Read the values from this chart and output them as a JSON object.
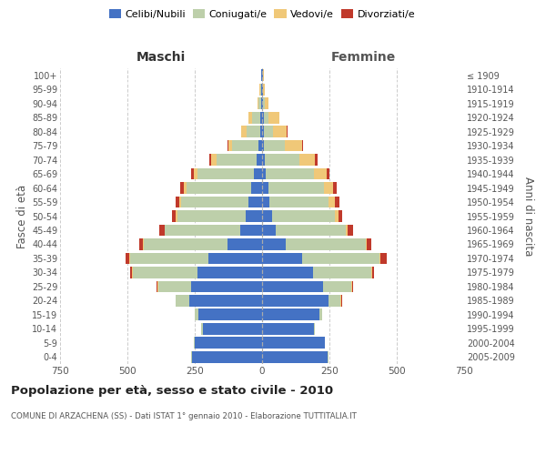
{
  "age_groups": [
    "0-4",
    "5-9",
    "10-14",
    "15-19",
    "20-24",
    "25-29",
    "30-34",
    "35-39",
    "40-44",
    "45-49",
    "50-54",
    "55-59",
    "60-64",
    "65-69",
    "70-74",
    "75-79",
    "80-84",
    "85-89",
    "90-94",
    "95-99",
    "100+"
  ],
  "birth_years": [
    "2005-2009",
    "2000-2004",
    "1995-1999",
    "1990-1994",
    "1985-1989",
    "1980-1984",
    "1975-1979",
    "1970-1974",
    "1965-1969",
    "1960-1964",
    "1955-1959",
    "1950-1954",
    "1945-1949",
    "1940-1944",
    "1935-1939",
    "1930-1934",
    "1925-1929",
    "1920-1924",
    "1915-1919",
    "1910-1914",
    "≤ 1909"
  ],
  "male_celibi": [
    260,
    250,
    220,
    235,
    270,
    265,
    240,
    200,
    130,
    80,
    60,
    50,
    40,
    30,
    20,
    12,
    8,
    8,
    5,
    3,
    2
  ],
  "male_coniugati": [
    2,
    2,
    5,
    15,
    50,
    120,
    240,
    290,
    310,
    280,
    255,
    250,
    240,
    210,
    150,
    98,
    48,
    28,
    8,
    4,
    2
  ],
  "male_vedovi": [
    0,
    0,
    0,
    0,
    0,
    2,
    2,
    2,
    2,
    3,
    5,
    8,
    10,
    15,
    18,
    14,
    22,
    14,
    4,
    2,
    0
  ],
  "male_divorziati": [
    0,
    0,
    0,
    0,
    2,
    4,
    7,
    14,
    14,
    20,
    14,
    14,
    14,
    10,
    8,
    5,
    0,
    0,
    0,
    0,
    0
  ],
  "female_celibi": [
    243,
    232,
    192,
    212,
    248,
    228,
    188,
    148,
    88,
    52,
    38,
    28,
    22,
    15,
    10,
    8,
    7,
    7,
    4,
    2,
    2
  ],
  "female_coniugati": [
    2,
    2,
    3,
    11,
    44,
    103,
    218,
    288,
    298,
    258,
    232,
    218,
    208,
    178,
    128,
    78,
    33,
    18,
    7,
    3,
    2
  ],
  "female_vedovi": [
    0,
    0,
    0,
    0,
    2,
    2,
    2,
    3,
    4,
    7,
    14,
    23,
    33,
    48,
    58,
    62,
    52,
    38,
    13,
    4,
    2
  ],
  "female_divorziati": [
    0,
    0,
    0,
    0,
    2,
    4,
    9,
    24,
    14,
    20,
    14,
    17,
    14,
    9,
    9,
    5,
    2,
    0,
    0,
    0,
    0
  ],
  "colors": {
    "celibi": "#4472C4",
    "coniugati": "#BDCFAA",
    "vedovi": "#F0C878",
    "divorziati": "#C0392B"
  },
  "xlim": 750,
  "title": "Popolazione per età, sesso e stato civile - 2010",
  "subtitle": "COMUNE DI ARZACHENA (SS) - Dati ISTAT 1° gennaio 2010 - Elaborazione TUTTITALIA.IT",
  "ylabel_left": "Fasce di età",
  "ylabel_right": "Anni di nascita",
  "xlabel_left": "Maschi",
  "xlabel_right": "Femmine",
  "bg_color": "#ffffff",
  "grid_color": "#cccccc",
  "text_color": "#555555",
  "legend_labels": [
    "Celibi/Nubili",
    "Coniugati/e",
    "Vedovi/e",
    "Divorziati/e"
  ]
}
